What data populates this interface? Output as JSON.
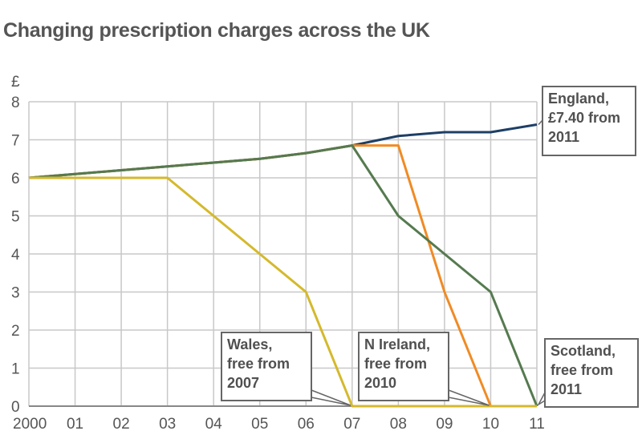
{
  "chart_data": {
    "type": "line",
    "title": "Changing prescription charges across the UK",
    "ylabel": "£",
    "xlabel": "",
    "x": [
      2000,
      2001,
      2002,
      2003,
      2004,
      2005,
      2006,
      2007,
      2008,
      2009,
      2010,
      2011
    ],
    "xtick_labels": [
      "2000",
      "01",
      "02",
      "03",
      "04",
      "05",
      "06",
      "07",
      "08",
      "09",
      "10",
      "11"
    ],
    "ytick_labels": [
      "0",
      "1",
      "2",
      "3",
      "4",
      "5",
      "6",
      "7",
      "8"
    ],
    "xlim": [
      2000,
      2011
    ],
    "ylim": [
      0,
      8
    ],
    "grid": true,
    "series": [
      {
        "name": "England",
        "color": "#1d3f66",
        "values": [
          6.0,
          6.1,
          6.2,
          6.3,
          6.4,
          6.5,
          6.65,
          6.85,
          7.1,
          7.2,
          7.2,
          7.4
        ]
      },
      {
        "name": "N Ireland",
        "color": "#f08b25",
        "values": [
          6.0,
          6.1,
          6.2,
          6.3,
          6.4,
          6.5,
          6.65,
          6.85,
          6.85,
          3.0,
          0,
          0
        ]
      },
      {
        "name": "Scotland",
        "color": "#557a4f",
        "values": [
          6.0,
          6.1,
          6.2,
          6.3,
          6.4,
          6.5,
          6.65,
          6.85,
          5.0,
          4.0,
          3.0,
          0
        ]
      },
      {
        "name": "Wales",
        "color": "#d4b92c",
        "values": [
          6.0,
          6.0,
          6.0,
          6.0,
          5.0,
          4.0,
          3.0,
          0,
          0,
          0,
          0,
          0
        ]
      }
    ],
    "annotations": [
      {
        "series": "England",
        "lines": [
          "England,",
          "£7.40 from",
          "2011"
        ]
      },
      {
        "series": "Wales",
        "lines": [
          "Wales,",
          "free from",
          "2007"
        ]
      },
      {
        "series": "N Ireland",
        "lines": [
          "N Ireland,",
          "free from",
          "2010"
        ]
      },
      {
        "series": "Scotland",
        "lines": [
          "Scotland,",
          "free from",
          "2011"
        ]
      }
    ]
  }
}
